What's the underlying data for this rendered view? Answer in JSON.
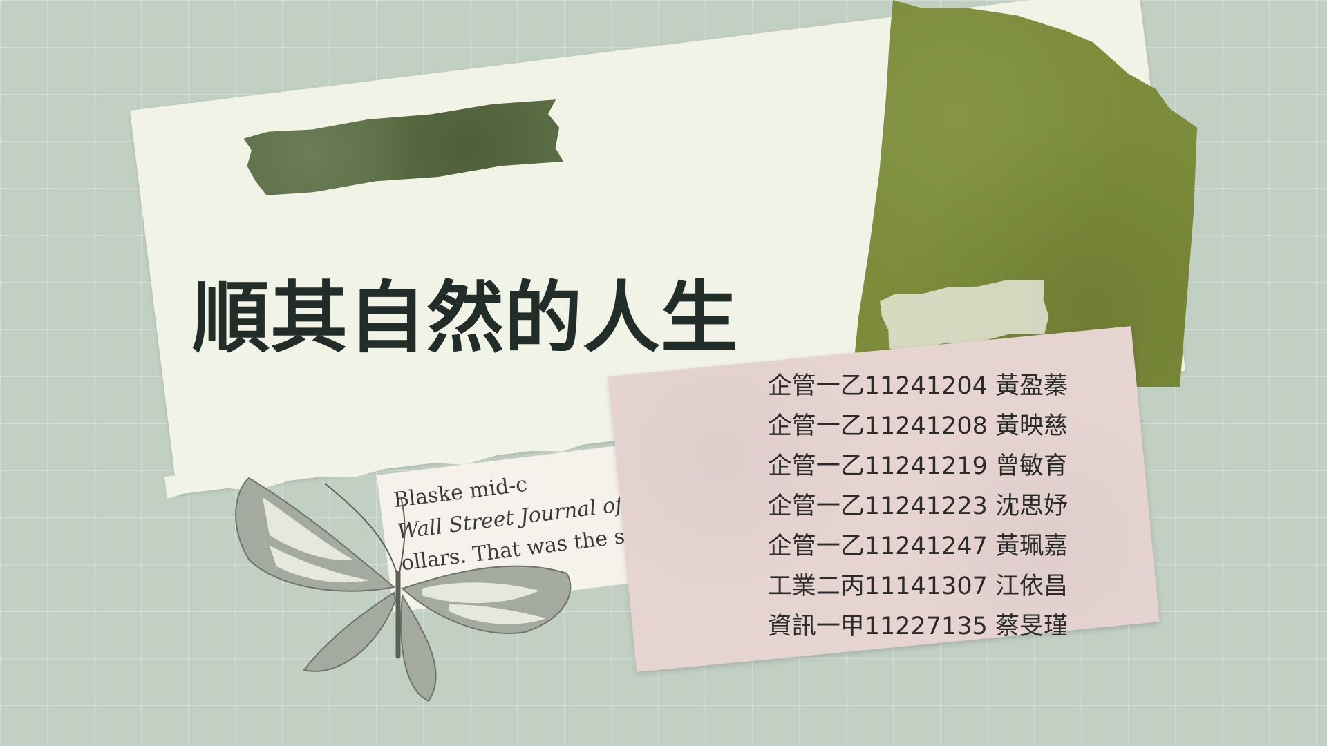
{
  "slide": {
    "title": "順其自然的人生",
    "members": [
      "企管一乙11241204 黃盈蓁",
      "企管一乙11241208 黃映慈",
      "企管一乙11241219 曾敏育",
      "企管一乙11241223 沈思妤",
      "企管一乙11241247 黃珮嘉",
      "工業二丙11141307 江依昌",
      "資訊一甲11227135  蔡旻瑾"
    ],
    "book_fragment": {
      "lines": [
        "Blaske       mid-c",
        "Wall Street Journal  offe",
        "ollars. That was the s"
      ]
    }
  },
  "colors": {
    "background": "#c2cfc3",
    "cream": "#f1f3e6",
    "olive": "#7c8c3a",
    "dark_green": "#5b6e44",
    "pink": "#e6d4d1",
    "title_text": "#222d2a"
  }
}
